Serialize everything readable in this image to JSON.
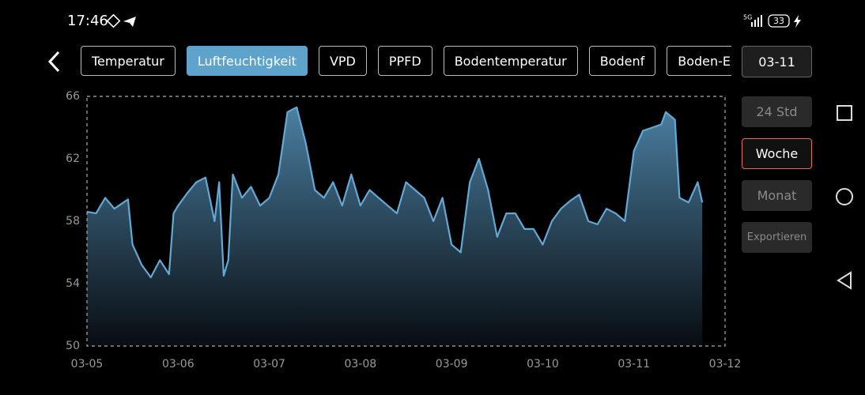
{
  "status_bar": {
    "time": "17:46",
    "battery": "33"
  },
  "tabs": [
    "Temperatur",
    "Luftfeuchtigkeit",
    "VPD",
    "PPFD",
    "Bodentemperatur",
    "Bodenf",
    "Boden-EC"
  ],
  "selected_tab": 1,
  "date_button": "03-11",
  "ranges": [
    "24 Std",
    "Woche",
    "Monat"
  ],
  "selected_range": 1,
  "export": "Exportieren",
  "chart_data": {
    "type": "line",
    "x": [
      5.0,
      5.1,
      5.2,
      5.3,
      5.4,
      5.45,
      5.5,
      5.6,
      5.7,
      5.8,
      5.9,
      5.95,
      6.0,
      6.1,
      6.2,
      6.3,
      6.4,
      6.45,
      6.5,
      6.55,
      6.6,
      6.7,
      6.8,
      6.9,
      7.0,
      7.1,
      7.2,
      7.3,
      7.4,
      7.5,
      7.6,
      7.7,
      7.8,
      7.9,
      8.0,
      8.1,
      8.2,
      8.3,
      8.4,
      8.5,
      8.6,
      8.7,
      8.8,
      8.9,
      9.0,
      9.1,
      9.2,
      9.3,
      9.4,
      9.5,
      9.6,
      9.7,
      9.8,
      9.9,
      10.0,
      10.1,
      10.2,
      10.3,
      10.4,
      10.5,
      10.6,
      10.7,
      10.8,
      10.9,
      11.0,
      11.1,
      11.2,
      11.3,
      11.35,
      11.45,
      11.5,
      11.6,
      11.7,
      11.75
    ],
    "series": [
      {
        "color": "#62a9d6",
        "values": [
          58.6,
          58.5,
          59.5,
          58.8,
          59.2,
          59.4,
          56.5,
          55.2,
          54.4,
          55.5,
          54.6,
          58.5,
          59.0,
          59.8,
          60.5,
          60.8,
          58.0,
          60.5,
          54.5,
          55.5,
          61.0,
          59.5,
          60.2,
          59.0,
          59.5,
          61.0,
          65.0,
          65.3,
          63.0,
          60.0,
          59.5,
          60.5,
          59.0,
          61.0,
          59.0,
          60.0,
          59.5,
          59.0,
          58.5,
          60.5,
          60.0,
          59.5,
          58.0,
          59.5,
          56.5,
          56.0,
          60.5,
          62.0,
          60.0,
          57.0,
          58.5,
          58.5,
          57.5,
          57.5,
          56.5,
          58.0,
          58.8,
          59.3,
          59.7,
          58.0,
          57.8,
          58.8,
          58.5,
          58.0,
          62.5,
          63.8,
          64.0,
          64.2,
          65.0,
          64.5,
          59.5,
          59.2,
          60.5,
          59.2
        ]
      }
    ],
    "xlim": [
      5,
      12
    ],
    "xticks": [
      {
        "value": 5,
        "label": "03-05"
      },
      {
        "value": 6,
        "label": "03-06"
      },
      {
        "value": 7,
        "label": "03-07"
      },
      {
        "value": 8,
        "label": "03-08"
      },
      {
        "value": 9,
        "label": "03-09"
      },
      {
        "value": 10,
        "label": "03-10"
      },
      {
        "value": 11,
        "label": "03-11"
      },
      {
        "value": 12,
        "label": "03-12"
      }
    ],
    "ylim": [
      50,
      66
    ],
    "yticks": [
      50,
      54,
      58,
      62,
      66
    ]
  }
}
